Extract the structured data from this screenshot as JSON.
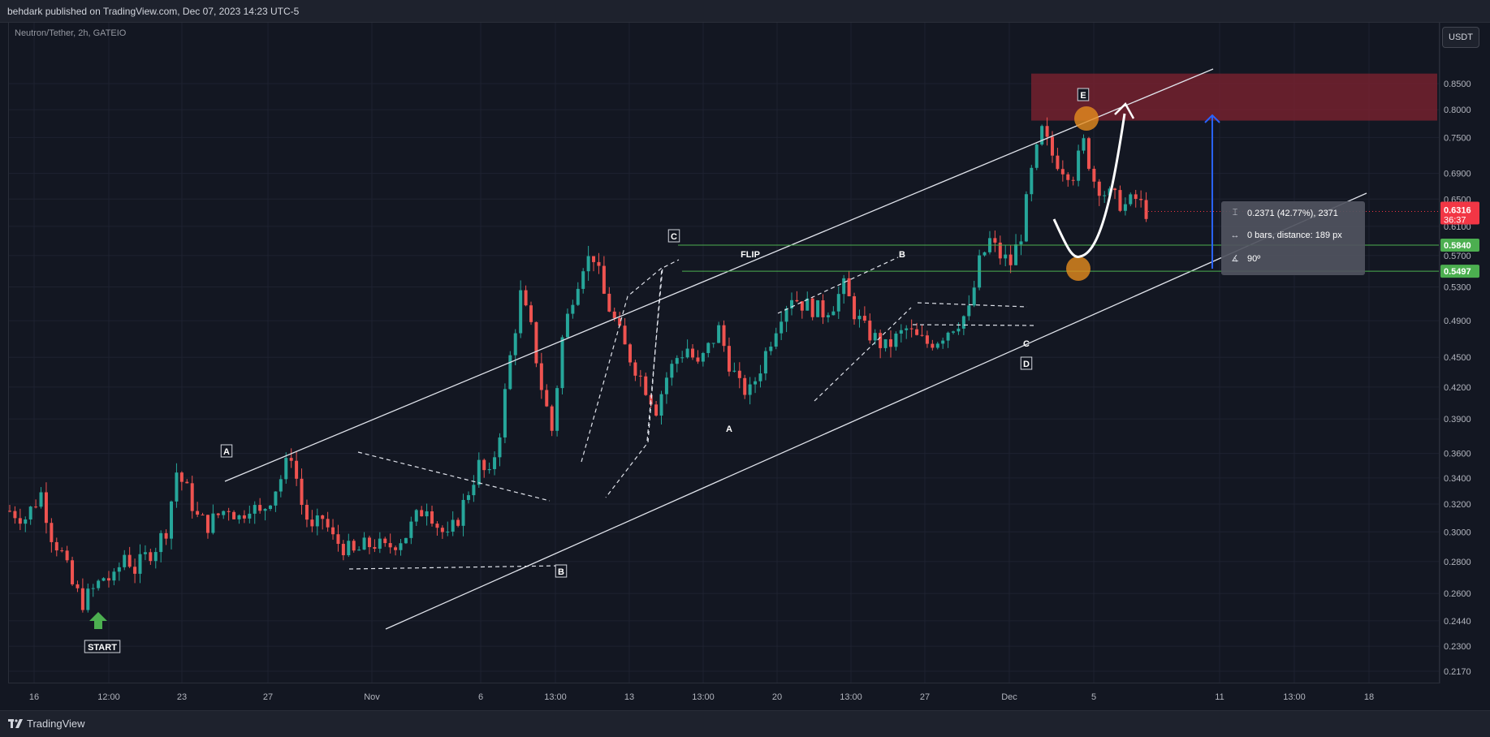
{
  "header": {
    "publisher": "behdark published on TradingView.com, Dec 07, 2023 14:23 UTC-5"
  },
  "symbol": "Neutron/Tether, 2h, GATEIO",
  "currency_button": "USDT",
  "footer": {
    "brand": "TradingView"
  },
  "measure": {
    "price_change": "0.2371 (42.77%), 2371",
    "bars_distance": "0 bars, distance: 189 px",
    "angle": "90º",
    "icons": [
      "price-range-icon",
      "bars-range-icon",
      "angle-icon"
    ]
  },
  "colors": {
    "background": "#131722",
    "up": "#26a69a",
    "down": "#ef5350",
    "current_price_badge": "#f23645",
    "level_badge": "#4caf50",
    "zone": "#7a2230",
    "arrow": "#2962ff"
  },
  "chart_data": {
    "type": "candlestick",
    "price_scale": "log",
    "y_ticks": [
      "0.8500",
      "0.8000",
      "0.7500",
      "0.6900",
      "0.6500",
      "0.6100",
      "0.5700",
      "0.5300",
      "0.4900",
      "0.4500",
      "0.4200",
      "0.3900",
      "0.3600",
      "0.3400",
      "0.3200",
      "0.3000",
      "0.2800",
      "0.2600",
      "0.2440",
      "0.2300",
      "0.2170"
    ],
    "x_ticks": [
      "16",
      "12:00",
      "23",
      "27",
      "Nov",
      "6",
      "13:00",
      "13",
      "13:00",
      "20",
      "13:00",
      "27",
      "Dec",
      "5",
      "11",
      "13:00",
      "18"
    ],
    "current_price": {
      "value": "0.6316",
      "countdown": "36:37"
    },
    "levels": [
      "0.5840",
      "0.5497"
    ],
    "resistance_zone": [
      0.78,
      0.87
    ],
    "series_close_path": [
      [
        0,
        0.315
      ],
      [
        3,
        0.31
      ],
      [
        6,
        0.328
      ],
      [
        8,
        0.298
      ],
      [
        10,
        0.285
      ],
      [
        12,
        0.265
      ],
      [
        14,
        0.255
      ],
      [
        16,
        0.262
      ],
      [
        18,
        0.27
      ],
      [
        20,
        0.268
      ],
      [
        22,
        0.285
      ],
      [
        24,
        0.275
      ],
      [
        26,
        0.283
      ],
      [
        28,
        0.29
      ],
      [
        30,
        0.302
      ],
      [
        32,
        0.345
      ],
      [
        34,
        0.33
      ],
      [
        36,
        0.31
      ],
      [
        38,
        0.305
      ],
      [
        40,
        0.312
      ],
      [
        42,
        0.318
      ],
      [
        44,
        0.31
      ],
      [
        46,
        0.32
      ],
      [
        48,
        0.312
      ],
      [
        50,
        0.325
      ],
      [
        52,
        0.34
      ],
      [
        54,
        0.36
      ],
      [
        56,
        0.32
      ],
      [
        58,
        0.3
      ],
      [
        60,
        0.31
      ],
      [
        62,
        0.295
      ],
      [
        64,
        0.29
      ],
      [
        66,
        0.285
      ],
      [
        68,
        0.29
      ],
      [
        70,
        0.292
      ],
      [
        72,
        0.288
      ],
      [
        74,
        0.293
      ],
      [
        76,
        0.298
      ],
      [
        78,
        0.31
      ],
      [
        80,
        0.32
      ],
      [
        82,
        0.305
      ],
      [
        84,
        0.295
      ],
      [
        86,
        0.31
      ],
      [
        88,
        0.33
      ],
      [
        90,
        0.35
      ],
      [
        92,
        0.34
      ],
      [
        94,
        0.38
      ],
      [
        96,
        0.45
      ],
      [
        98,
        0.52
      ],
      [
        100,
        0.48
      ],
      [
        102,
        0.42
      ],
      [
        104,
        0.38
      ],
      [
        106,
        0.47
      ],
      [
        108,
        0.52
      ],
      [
        110,
        0.56
      ],
      [
        112,
        0.57
      ],
      [
        114,
        0.52
      ],
      [
        116,
        0.49
      ],
      [
        118,
        0.46
      ],
      [
        120,
        0.44
      ],
      [
        122,
        0.42
      ],
      [
        124,
        0.4
      ],
      [
        126,
        0.43
      ],
      [
        128,
        0.45
      ],
      [
        130,
        0.46
      ],
      [
        132,
        0.44
      ],
      [
        134,
        0.46
      ],
      [
        136,
        0.48
      ],
      [
        138,
        0.445
      ],
      [
        140,
        0.42
      ],
      [
        142,
        0.415
      ],
      [
        144,
        0.44
      ],
      [
        146,
        0.47
      ],
      [
        148,
        0.5
      ],
      [
        150,
        0.52
      ],
      [
        152,
        0.51
      ],
      [
        154,
        0.505
      ],
      [
        156,
        0.5
      ],
      [
        158,
        0.51
      ],
      [
        160,
        0.53
      ],
      [
        162,
        0.5
      ],
      [
        164,
        0.48
      ],
      [
        166,
        0.47
      ],
      [
        168,
        0.46
      ],
      [
        170,
        0.47
      ],
      [
        172,
        0.48
      ],
      [
        174,
        0.47
      ],
      [
        176,
        0.465
      ],
      [
        178,
        0.47
      ],
      [
        180,
        0.48
      ],
      [
        182,
        0.49
      ],
      [
        184,
        0.5
      ],
      [
        186,
        0.56
      ],
      [
        188,
        0.59
      ],
      [
        190,
        0.57
      ],
      [
        192,
        0.56
      ],
      [
        194,
        0.6
      ],
      [
        196,
        0.69
      ],
      [
        198,
        0.76
      ],
      [
        200,
        0.72
      ],
      [
        202,
        0.7
      ],
      [
        204,
        0.69
      ],
      [
        206,
        0.74
      ],
      [
        208,
        0.68
      ],
      [
        210,
        0.66
      ],
      [
        212,
        0.65
      ],
      [
        214,
        0.64
      ],
      [
        216,
        0.65
      ],
      [
        218,
        0.632
      ]
    ],
    "annotations": [
      {
        "text": "START",
        "kind": "label"
      },
      {
        "text": "A",
        "kind": "wave"
      },
      {
        "text": "B",
        "kind": "wave"
      },
      {
        "text": "C",
        "kind": "wave"
      },
      {
        "text": "FLIP",
        "kind": "note"
      },
      {
        "text": "A",
        "kind": "wave-minor"
      },
      {
        "text": "B",
        "kind": "wave-minor"
      },
      {
        "text": "C",
        "kind": "wave-minor"
      },
      {
        "text": "D",
        "kind": "wave"
      },
      {
        "text": "E",
        "kind": "wave"
      }
    ]
  }
}
